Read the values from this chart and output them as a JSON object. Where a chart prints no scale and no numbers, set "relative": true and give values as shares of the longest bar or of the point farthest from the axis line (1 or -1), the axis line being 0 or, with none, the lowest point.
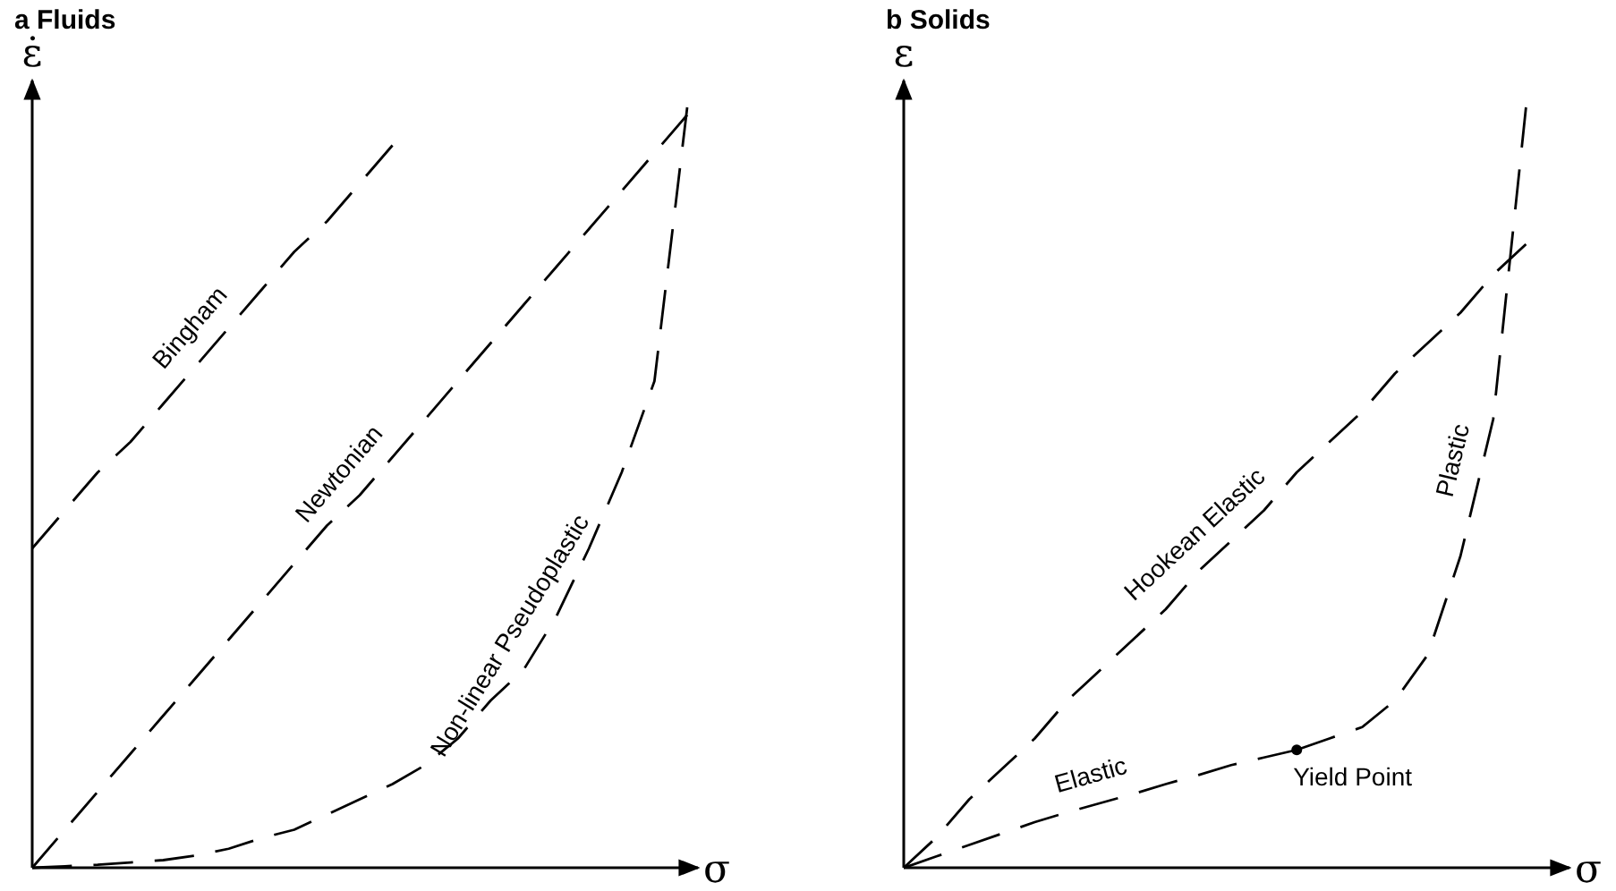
{
  "chart_data": [
    {
      "type": "line",
      "title": "a Fluids",
      "xlabel": "σ",
      "ylabel": "ε̇",
      "relative": true,
      "marker": "none",
      "line_style": "dashed",
      "categories": [
        null,
        null,
        null,
        null,
        null,
        null,
        null,
        null,
        null,
        null,
        null,
        null,
        null,
        null,
        null,
        null,
        null,
        null,
        null,
        null,
        null
      ],
      "series": [
        {
          "name": "Bingham",
          "color": "#000000",
          "values": [
            0.42,
            0.47,
            0.52,
            0.56,
            0.61,
            0.66,
            0.71,
            0.76,
            0.81,
            0.85,
            0.9,
            0.95,
            null,
            null,
            null,
            null,
            null,
            null,
            null,
            null,
            null
          ]
        },
        {
          "name": "Newtonian",
          "color": "#000000",
          "values": [
            0,
            0.05,
            0.1,
            0.15,
            0.2,
            0.25,
            0.3,
            0.35,
            0.4,
            0.45,
            0.49,
            0.54,
            0.59,
            0.64,
            0.69,
            0.74,
            0.79,
            0.84,
            0.89,
            0.94,
            0.99
          ]
        },
        {
          "name": "Non-linear Pseudoplastic",
          "color": "#000000",
          "values": [
            0,
            0.002,
            0.004,
            0.007,
            0.01,
            0.016,
            0.025,
            0.039,
            0.05,
            0.07,
            0.09,
            0.11,
            0.135,
            0.17,
            0.22,
            0.26,
            0.33,
            0.42,
            0.52,
            0.64,
            1.0
          ]
        }
      ]
    },
    {
      "type": "line",
      "title": "b Solids",
      "xlabel": "σ",
      "ylabel": "ε",
      "relative": true,
      "marker": "none",
      "line_style": "dashed",
      "categories": [
        null,
        null,
        null,
        null,
        null,
        null,
        null,
        null,
        null,
        null,
        null,
        null,
        null,
        null,
        null,
        null,
        null,
        null,
        null,
        null,
        null
      ],
      "annotations": [
        "Yield Point"
      ],
      "series": [
        {
          "name": "Hookean Elastic",
          "color": "#000000",
          "values": [
            0,
            0.04,
            0.09,
            0.13,
            0.17,
            0.22,
            0.26,
            0.3,
            0.34,
            0.39,
            0.43,
            0.47,
            0.52,
            0.56,
            0.6,
            0.65,
            0.69,
            0.73,
            0.78,
            0.82,
            null
          ]
        },
        {
          "name": "Elastic",
          "color": "#000000",
          "values": [
            0,
            0.015,
            0.03,
            0.045,
            0.06,
            0.073,
            0.085,
            0.097,
            0.11,
            0.122,
            0.135,
            0.145,
            0.155,
            null,
            null,
            null,
            null,
            null,
            null,
            null,
            null
          ]
        },
        {
          "name": "Plastic",
          "color": "#000000",
          "values": [
            null,
            null,
            null,
            null,
            null,
            null,
            null,
            null,
            null,
            null,
            null,
            null,
            0.155,
            0.17,
            0.185,
            0.22,
            0.28,
            0.41,
            0.59,
            1.0,
            null
          ]
        }
      ]
    }
  ]
}
